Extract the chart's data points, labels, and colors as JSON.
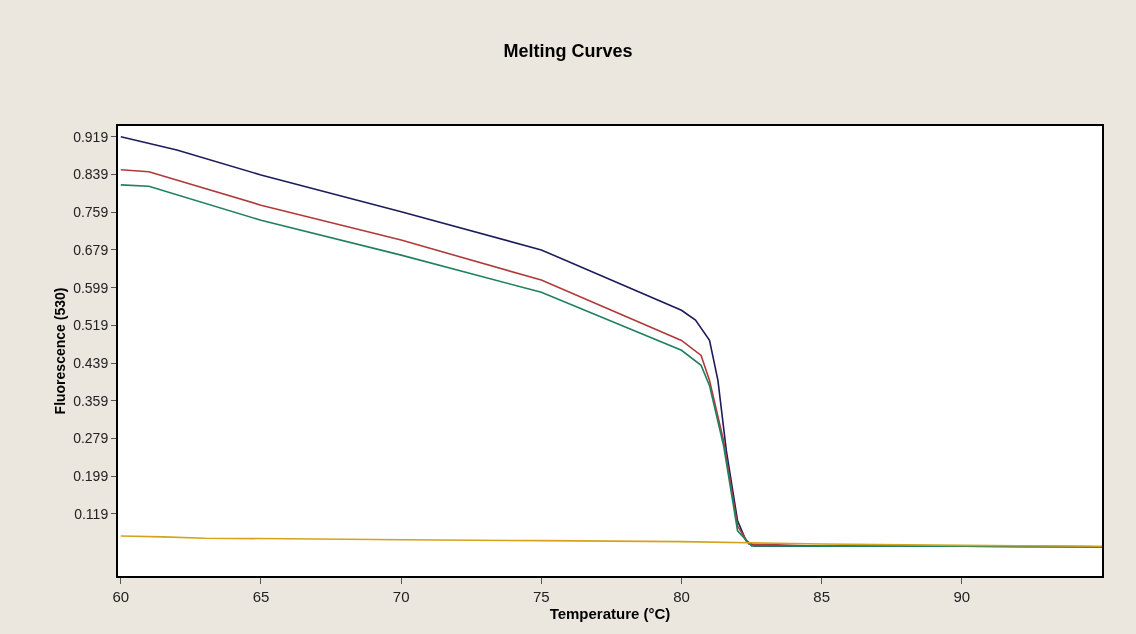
{
  "chart_data": {
    "type": "line",
    "title": "Melting Curves",
    "xlabel": "Temperature (°C)",
    "ylabel": "Fluorescence (530)",
    "xlim": [
      59.9,
      95
    ],
    "xticks": [
      60,
      65,
      70,
      75,
      80,
      85,
      90
    ],
    "ylim": [
      -0.013,
      0.942
    ],
    "yticks": [
      0.119,
      0.199,
      0.279,
      0.359,
      0.439,
      0.519,
      0.599,
      0.679,
      0.759,
      0.839,
      0.919
    ],
    "marker": "none",
    "line_style": "solid",
    "series": [
      {
        "color": "#1c1c5a",
        "x": [
          60,
          62,
          65,
          70,
          75,
          80,
          80.5,
          81,
          81.3,
          81.6,
          82,
          82.3,
          82.6,
          85,
          90,
          95
        ],
        "values": [
          0.919,
          0.891,
          0.838,
          0.76,
          0.679,
          0.551,
          0.53,
          0.487,
          0.402,
          0.253,
          0.104,
          0.062,
          0.051,
          0.05,
          0.05,
          0.049
        ]
      },
      {
        "color": "#b03a3a",
        "x": [
          60,
          61,
          65,
          70,
          75,
          80,
          80.7,
          81,
          81.5,
          82,
          82.4,
          85,
          90,
          95
        ],
        "values": [
          0.849,
          0.845,
          0.774,
          0.7,
          0.615,
          0.487,
          0.455,
          0.402,
          0.274,
          0.093,
          0.055,
          0.05,
          0.05,
          0.049
        ]
      },
      {
        "color": "#1f8060",
        "x": [
          60,
          61,
          65,
          70,
          75,
          80,
          80.7,
          81,
          81.5,
          82,
          82.5,
          85,
          90,
          95
        ],
        "values": [
          0.817,
          0.814,
          0.742,
          0.668,
          0.589,
          0.466,
          0.434,
          0.391,
          0.264,
          0.083,
          0.051,
          0.05,
          0.05,
          0.049
        ]
      },
      {
        "color": "#d4a21c",
        "x": [
          60,
          61.5,
          63,
          66,
          70,
          75,
          80,
          85,
          90,
          95
        ],
        "values": [
          0.072,
          0.07,
          0.067,
          0.066,
          0.064,
          0.062,
          0.06,
          0.055,
          0.052,
          0.05
        ]
      }
    ]
  }
}
